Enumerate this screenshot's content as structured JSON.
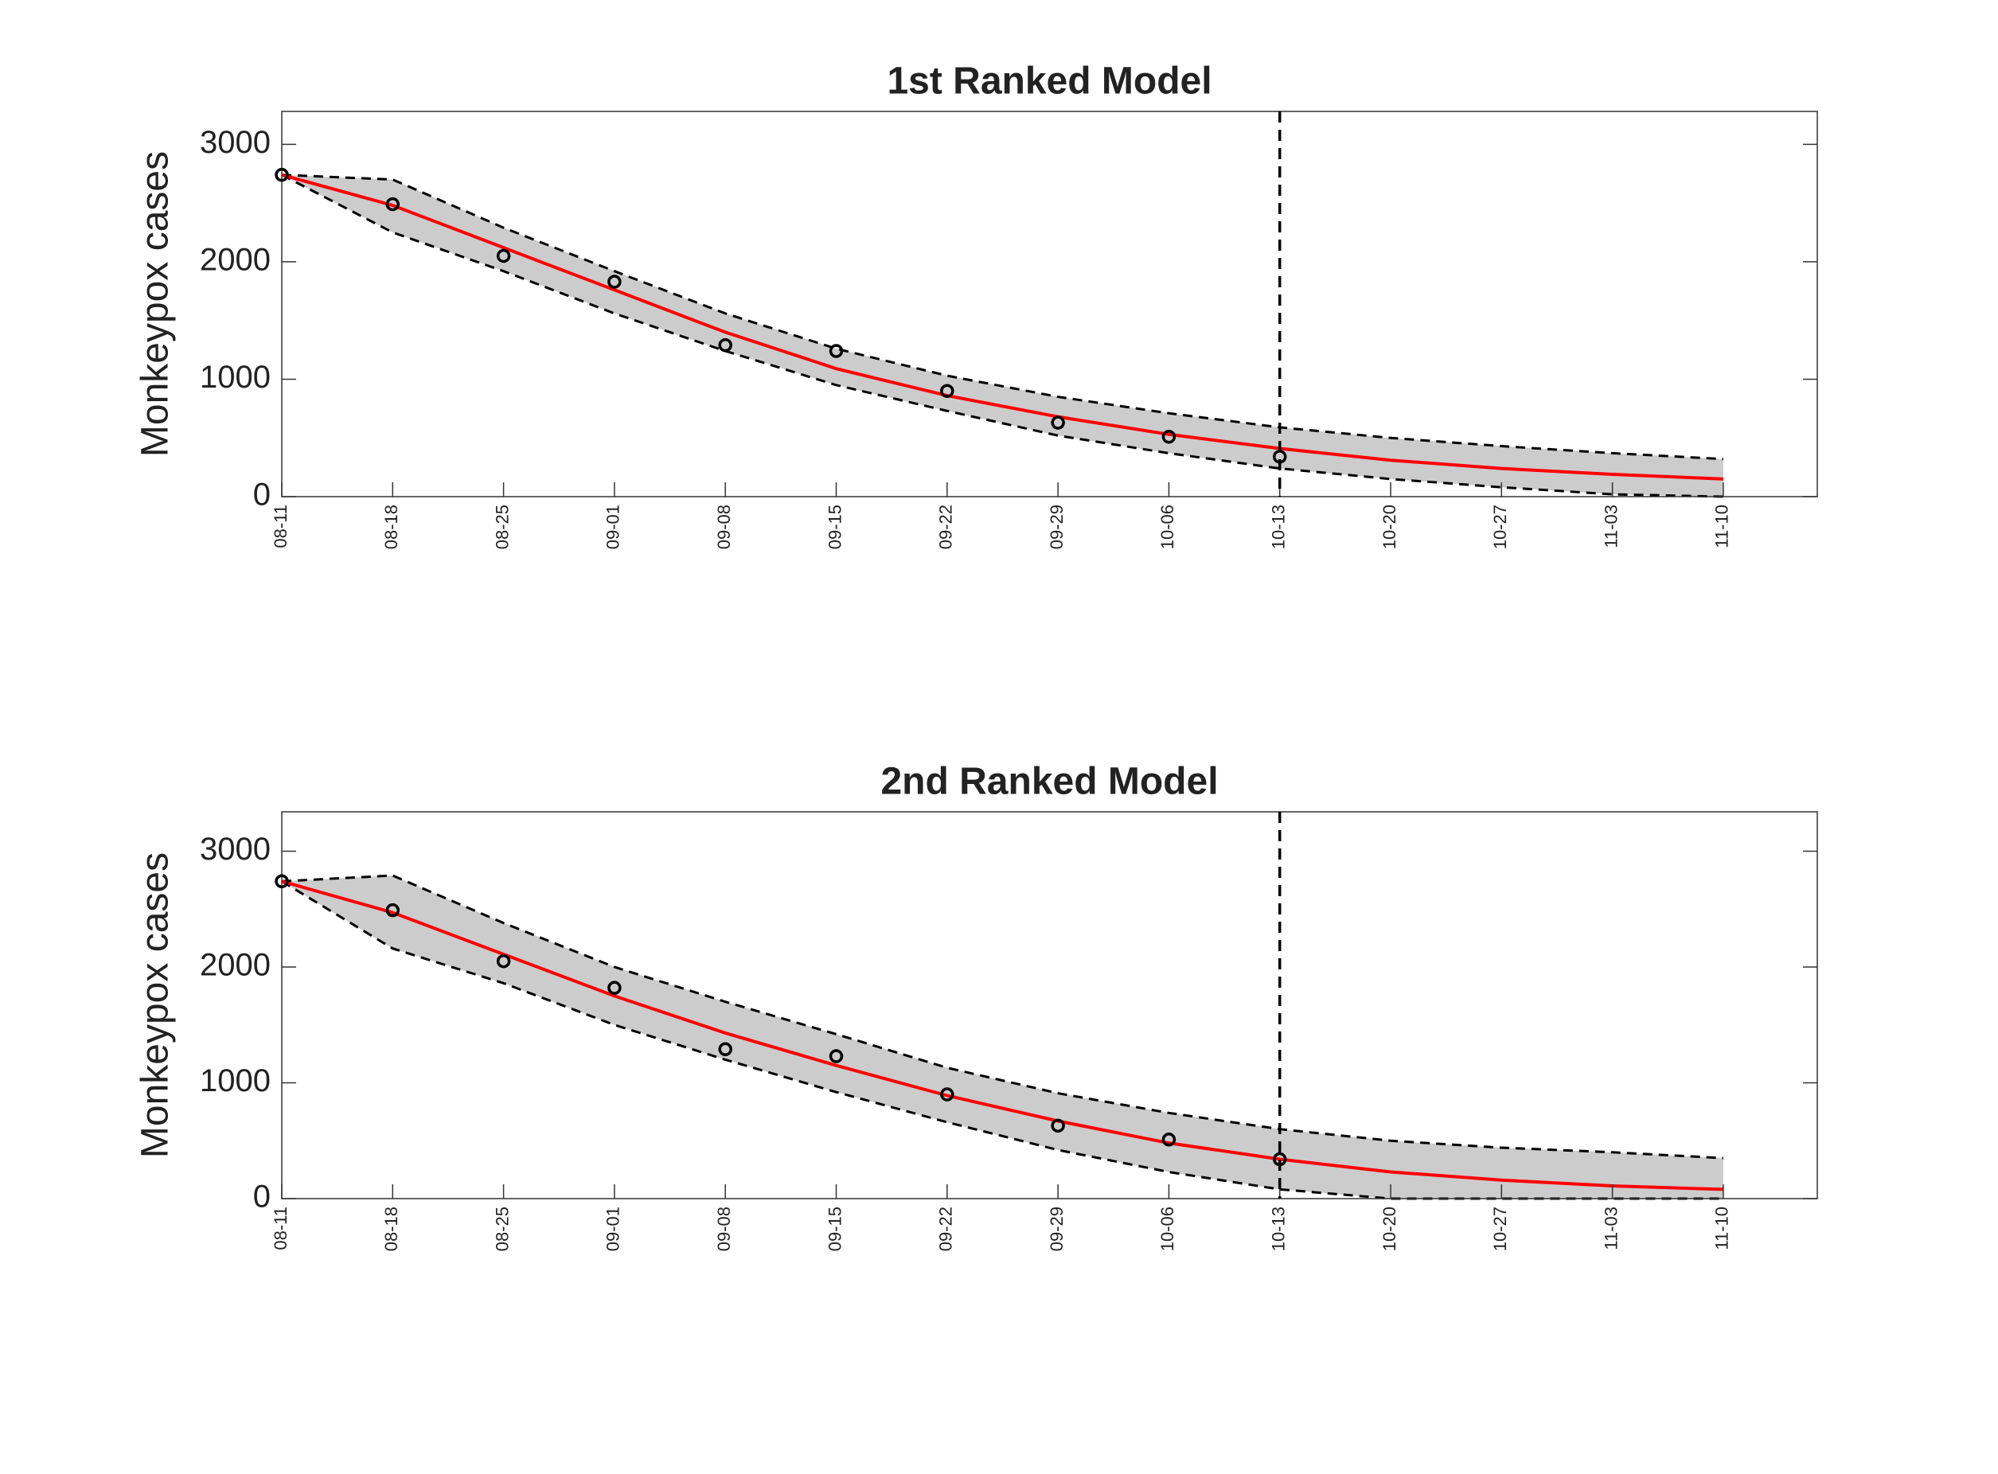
{
  "chart_data": [
    {
      "type": "line",
      "title": "1st Ranked Model",
      "ylabel": "Monkeypox cases",
      "categories": [
        "08-11",
        "08-18",
        "08-25",
        "09-01",
        "09-08",
        "09-15",
        "09-22",
        "09-29",
        "10-06",
        "10-13",
        "10-20",
        "10-27",
        "11-03",
        "11-10"
      ],
      "ylim": [
        0,
        3280
      ],
      "yticks": [
        0,
        1000,
        2000,
        3000
      ],
      "vertical_line_at": "10-13",
      "band": {
        "color": "#cccccc",
        "upper": [
          2740,
          2700,
          2290,
          1920,
          1560,
          1260,
          1030,
          850,
          710,
          590,
          500,
          430,
          370,
          320
        ],
        "lower": [
          2740,
          2250,
          1920,
          1560,
          1240,
          950,
          730,
          520,
          370,
          240,
          150,
          80,
          20,
          0
        ]
      },
      "series": [
        {
          "color": "#ff0000",
          "values": [
            2740,
            2480,
            2120,
            1760,
            1400,
            1090,
            860,
            680,
            530,
            410,
            310,
            240,
            190,
            150
          ]
        }
      ],
      "observations": {
        "color": "#000000",
        "values": [
          2740,
          2490,
          2050,
          1830,
          1290,
          1240,
          900,
          630,
          510,
          340
        ]
      }
    },
    {
      "type": "line",
      "title": "2nd Ranked Model",
      "ylabel": "Monkeypox cases",
      "categories": [
        "08-11",
        "08-18",
        "08-25",
        "09-01",
        "09-08",
        "09-15",
        "09-22",
        "09-29",
        "10-06",
        "10-13",
        "10-20",
        "10-27",
        "11-03",
        "11-10"
      ],
      "ylim": [
        0,
        3340
      ],
      "yticks": [
        0,
        1000,
        2000,
        3000
      ],
      "vertical_line_at": "10-13",
      "band": {
        "color": "#cccccc",
        "upper": [
          2740,
          2790,
          2380,
          2000,
          1700,
          1420,
          1130,
          910,
          740,
          600,
          500,
          440,
          400,
          350
        ],
        "lower": [
          2740,
          2160,
          1860,
          1500,
          1200,
          920,
          660,
          420,
          230,
          80,
          0,
          0,
          0,
          0
        ]
      },
      "series": [
        {
          "color": "#ff0000",
          "values": [
            2740,
            2470,
            2110,
            1750,
            1430,
            1150,
            890,
            670,
            480,
            340,
            230,
            160,
            110,
            80
          ]
        }
      ],
      "observations": {
        "color": "#000000",
        "values": [
          2740,
          2490,
          2050,
          1820,
          1290,
          1230,
          900,
          630,
          510,
          340
        ]
      }
    }
  ]
}
